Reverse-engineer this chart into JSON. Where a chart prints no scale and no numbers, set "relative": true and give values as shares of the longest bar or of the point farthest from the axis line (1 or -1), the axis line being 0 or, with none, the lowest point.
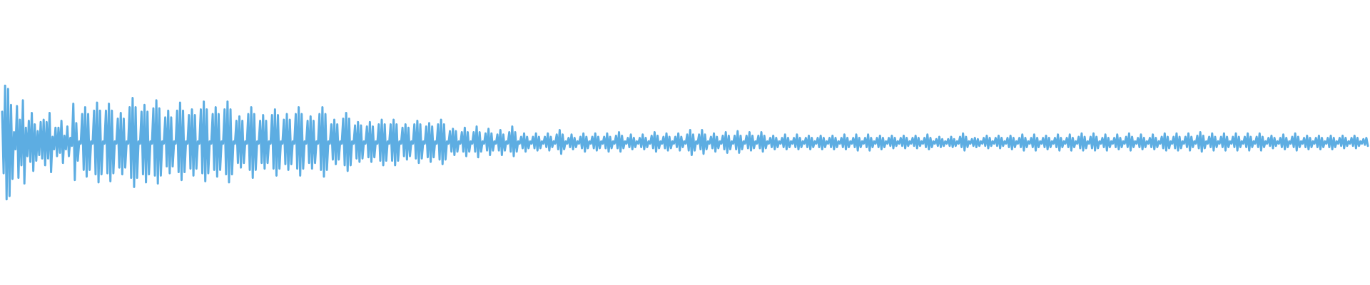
{
  "chart_data": {
    "type": "line",
    "relative": true,
    "categories": [
      null,
      null,
      null,
      null,
      null,
      null,
      null,
      null,
      null,
      null,
      null,
      null,
      null,
      null,
      null,
      null,
      null,
      null,
      null,
      null,
      null,
      null,
      null,
      null,
      null,
      null,
      null,
      null,
      null,
      null,
      null,
      null,
      null,
      null,
      null,
      null,
      null,
      null,
      null,
      null,
      null,
      null,
      null,
      null,
      null,
      null,
      null,
      null,
      null,
      null,
      null,
      null,
      null,
      null,
      null,
      null,
      null,
      null,
      null,
      null,
      null,
      null,
      null,
      null,
      null,
      null,
      null,
      null,
      null,
      null,
      null,
      null,
      null,
      null,
      null,
      null,
      null,
      null,
      null,
      null,
      null,
      null,
      null,
      null,
      null,
      null,
      null,
      null,
      null,
      null,
      null,
      null,
      null,
      null,
      null,
      null,
      null,
      null,
      null,
      null,
      null,
      null,
      null,
      null,
      null,
      null,
      null,
      null,
      null,
      null,
      null,
      null,
      null,
      null,
      null,
      null,
      null,
      null,
      null,
      null,
      null,
      null,
      null,
      null,
      null,
      null,
      null,
      null,
      null,
      null,
      null,
      null,
      null,
      null,
      null,
      null,
      null,
      null,
      null,
      null,
      null,
      null,
      null,
      null,
      null,
      null,
      null,
      null,
      null,
      null,
      null,
      null,
      null,
      null,
      null,
      null,
      null,
      null,
      null,
      null,
      null,
      null,
      null,
      null,
      null,
      null,
      null,
      null,
      null,
      null,
      null,
      null,
      null,
      null,
      null,
      null,
      null,
      null,
      null,
      null,
      null,
      null,
      null,
      null,
      null,
      null,
      null,
      null,
      null,
      null,
      null,
      null,
      null,
      null,
      null,
      null,
      null,
      null,
      null,
      null,
      null,
      null,
      null,
      null,
      null,
      null,
      null,
      null,
      null,
      null,
      null,
      null,
      null,
      null,
      null,
      null,
      null,
      null,
      null,
      null,
      null,
      null,
      null,
      null,
      null,
      null,
      null,
      null,
      null,
      null,
      null,
      null,
      null,
      null,
      null,
      null,
      null,
      null,
      null,
      null,
      null,
      null,
      null,
      null,
      null,
      null,
      null,
      null,
      null,
      null,
      null,
      null,
      null,
      null,
      null,
      null,
      null,
      null,
      null,
      null,
      null,
      null,
      null,
      null,
      null,
      null,
      null,
      null,
      null,
      null,
      null,
      null,
      null,
      null,
      null,
      null,
      null,
      null,
      null,
      null,
      null,
      null,
      null,
      null,
      null,
      null,
      null,
      null,
      null,
      null,
      null,
      null,
      null,
      null,
      null,
      null,
      null,
      null,
      null,
      null,
      null,
      null,
      null,
      null,
      null,
      null,
      null,
      null,
      null,
      null,
      null,
      null,
      null,
      null,
      null,
      null,
      null,
      null,
      null,
      null,
      null,
      null,
      null,
      null,
      null,
      null,
      null,
      null,
      null,
      null,
      null,
      null,
      null,
      null,
      null,
      null,
      null,
      null,
      null,
      null,
      null,
      null,
      null,
      null,
      null,
      null,
      null,
      null,
      null,
      null,
      null,
      null,
      null,
      null,
      null,
      null,
      null,
      null,
      null,
      null,
      null,
      null,
      null,
      null,
      null,
      null,
      null,
      null,
      null,
      null,
      null,
      null,
      null,
      null,
      null,
      null,
      null,
      null,
      null,
      null,
      null,
      null,
      null,
      null,
      null,
      null,
      null,
      null,
      null,
      null,
      null,
      null,
      null,
      null,
      null,
      null,
      null,
      null,
      null,
      null,
      null,
      null,
      null,
      null,
      null,
      null,
      null,
      null,
      null,
      null,
      null,
      null,
      null,
      null,
      null,
      null,
      null,
      null,
      null,
      null,
      null,
      null,
      null,
      null,
      null,
      null,
      null,
      null,
      null,
      null,
      null,
      null,
      null,
      null,
      null,
      null,
      null,
      null,
      null,
      null,
      null,
      null,
      null,
      null,
      null,
      null,
      null,
      null,
      null,
      null,
      null,
      null,
      null,
      null,
      null,
      null,
      null,
      null,
      null,
      null,
      null,
      null,
      null,
      null,
      null,
      null,
      null,
      null,
      null,
      null,
      null,
      null,
      null,
      null,
      null,
      null,
      null,
      null,
      null,
      null,
      null,
      null,
      null,
      null,
      null,
      null,
      null,
      null,
      null,
      null,
      null,
      null,
      null,
      null,
      null,
      null,
      null,
      null,
      null,
      null,
      null,
      null,
      null,
      null,
      null,
      null,
      null,
      null,
      null,
      null,
      null,
      null,
      null,
      null,
      null,
      null,
      null,
      null,
      null,
      null,
      null,
      null,
      null,
      null,
      null,
      null,
      null,
      null,
      null,
      null,
      null,
      null,
      null,
      null,
      null,
      null,
      null,
      null,
      null,
      null,
      null,
      null,
      null,
      null,
      null,
      null,
      null,
      null,
      null,
      null,
      null,
      null,
      null,
      null,
      null,
      null,
      null,
      null,
      null,
      null,
      null,
      null,
      null,
      null,
      null,
      null,
      null,
      null,
      null,
      null,
      null,
      null,
      null,
      null,
      null,
      null,
      null,
      null,
      null,
      null,
      null,
      null,
      null,
      null,
      null,
      null,
      null,
      null,
      null,
      null,
      null,
      null,
      null,
      null,
      null,
      null,
      null,
      null,
      null,
      null,
      null,
      null,
      null,
      null,
      null,
      null,
      null,
      null,
      null,
      null,
      null,
      null,
      null,
      null,
      null,
      null,
      null,
      null,
      null,
      null,
      null,
      null,
      null,
      null,
      null,
      null,
      null,
      null,
      null,
      null,
      null,
      null,
      null,
      null,
      null,
      null,
      null,
      null,
      null,
      null,
      null,
      null,
      null,
      null,
      null,
      null,
      null,
      null,
      null,
      null,
      null,
      null,
      null,
      null,
      null,
      null,
      null,
      null,
      null,
      null,
      null,
      null,
      null,
      null,
      null,
      null,
      null,
      null,
      null,
      null,
      null,
      null,
      null,
      null,
      null,
      null,
      null,
      null,
      null,
      null,
      null,
      null,
      null,
      null,
      null,
      null,
      null,
      null,
      null,
      null,
      null,
      null,
      null,
      null,
      null,
      null,
      null,
      null,
      null,
      null,
      null,
      null,
      null,
      null,
      null,
      null,
      null,
      null,
      null,
      null,
      null,
      null,
      null,
      null,
      null,
      null,
      null,
      null,
      null,
      null,
      null,
      null,
      null,
      null,
      null,
      null,
      null,
      null,
      null,
      null,
      null,
      null,
      null,
      null,
      null,
      null,
      null,
      null,
      null,
      null,
      null,
      null,
      null,
      null,
      null,
      null,
      null,
      null,
      null,
      null,
      null,
      null,
      null,
      null,
      null,
      null,
      null,
      null,
      null,
      null,
      null,
      null,
      null,
      null,
      null,
      null,
      null,
      null,
      null,
      null,
      null,
      null,
      null,
      null,
      null,
      null,
      null,
      null,
      null,
      null,
      null,
      null,
      null,
      null,
      null,
      null,
      null,
      null,
      null,
      null,
      null,
      null,
      null,
      null,
      null,
      null,
      null,
      null,
      null,
      null,
      null,
      null,
      null,
      null,
      null,
      null,
      null,
      null,
      null,
      null,
      null,
      null,
      null,
      null,
      null,
      null,
      null,
      null,
      null,
      null,
      null,
      null,
      null,
      null,
      null,
      null,
      null,
      null,
      null,
      null,
      null,
      null,
      null,
      null,
      null,
      null,
      null,
      null,
      null,
      null,
      null,
      null,
      null,
      null,
      null,
      null,
      null,
      null,
      null,
      null,
      null,
      null,
      null,
      null,
      null,
      null,
      null,
      null,
      null,
      null,
      null,
      null,
      null,
      null,
      null,
      null,
      null,
      null,
      null,
      null,
      null,
      null,
      null,
      null,
      null,
      null,
      null,
      null,
      null,
      null,
      null,
      null,
      null,
      null,
      null,
      null,
      null,
      null,
      null,
      null,
      null,
      null,
      null,
      null,
      null,
      null,
      null,
      null,
      null,
      null,
      null,
      null,
      null,
      null,
      null,
      null,
      null,
      null,
      null,
      null,
      null,
      null,
      null,
      null,
      null,
      null,
      null,
      null,
      null,
      null,
      null,
      null
    ],
    "series": [
      {
        "color": "#5dade2",
        "values": [
          0.77,
          0.23,
          1,
          0,
          0.97,
          0.03,
          0.83,
          0.18,
          0.59,
          0.44,
          0.82,
          0.19,
          0.7,
          0.3,
          0.87,
          0.14,
          0.63,
          0.38,
          0.69,
          0.33,
          0.76,
          0.25,
          0.66,
          0.34,
          0.6,
          0.39,
          0.68,
          0.36,
          0.7,
          0.3,
          0.68,
          0.36,
          0.76,
          0.24,
          0.55,
          0.44,
          0.63,
          0.38,
          0.63,
          0.41,
          0.69,
          0.32,
          0.56,
          0.44,
          0.64,
          0.38,
          0.54,
          0.47,
          0.84,
          0.17,
          0.67,
          0.34,
          0.51,
          0.49,
          0.75,
          0.26,
          0.81,
          0.2,
          0.75,
          0.26,
          0.51,
          0.49,
          0.78,
          0.22,
          0.85,
          0.15,
          0.78,
          0.22,
          0.51,
          0.49,
          0.78,
          0.23,
          0.84,
          0.16,
          0.78,
          0.23,
          0.51,
          0.49,
          0.71,
          0.28,
          0.76,
          0.22,
          0.71,
          0.28,
          0.51,
          0.49,
          0.81,
          0.19,
          0.89,
          0.11,
          0.81,
          0.19,
          0.51,
          0.49,
          0.77,
          0.22,
          0.83,
          0.15,
          0.77,
          0.22,
          0.51,
          0.49,
          0.8,
          0.21,
          0.87,
          0.14,
          0.8,
          0.21,
          0.51,
          0.49,
          0.72,
          0.29,
          0.78,
          0.23,
          0.72,
          0.29,
          0.51,
          0.49,
          0.78,
          0.24,
          0.85,
          0.17,
          0.78,
          0.24,
          0.51,
          0.49,
          0.74,
          0.27,
          0.79,
          0.21,
          0.74,
          0.27,
          0.51,
          0.49,
          0.79,
          0.23,
          0.86,
          0.16,
          0.79,
          0.23,
          0.51,
          0.49,
          0.75,
          0.26,
          0.81,
          0.2,
          0.75,
          0.26,
          0.51,
          0.49,
          0.79,
          0.22,
          0.86,
          0.15,
          0.79,
          0.22,
          0.51,
          0.49,
          0.69,
          0.32,
          0.73,
          0.28,
          0.69,
          0.32,
          0.51,
          0.49,
          0.75,
          0.26,
          0.81,
          0.19,
          0.75,
          0.26,
          0.51,
          0.49,
          0.69,
          0.32,
          0.74,
          0.27,
          0.69,
          0.32,
          0.51,
          0.49,
          0.74,
          0.27,
          0.79,
          0.21,
          0.74,
          0.27,
          0.51,
          0.49,
          0.7,
          0.31,
          0.75,
          0.26,
          0.7,
          0.31,
          0.51,
          0.49,
          0.75,
          0.27,
          0.81,
          0.21,
          0.75,
          0.27,
          0.51,
          0.49,
          0.69,
          0.32,
          0.73,
          0.27,
          0.69,
          0.32,
          0.51,
          0.49,
          0.75,
          0.26,
          0.81,
          0.2,
          0.75,
          0.26,
          0.51,
          0.49,
          0.66,
          0.35,
          0.7,
          0.31,
          0.66,
          0.35,
          0.51,
          0.49,
          0.71,
          0.3,
          0.76,
          0.25,
          0.71,
          0.3,
          0.51,
          0.49,
          0.65,
          0.36,
          0.68,
          0.33,
          0.65,
          0.36,
          0.51,
          0.49,
          0.64,
          0.37,
          0.68,
          0.33,
          0.64,
          0.37,
          0.51,
          0.49,
          0.66,
          0.34,
          0.7,
          0.3,
          0.66,
          0.34,
          0.51,
          0.49,
          0.66,
          0.34,
          0.7,
          0.3,
          0.66,
          0.34,
          0.51,
          0.49,
          0.63,
          0.38,
          0.66,
          0.35,
          0.63,
          0.38,
          0.51,
          0.49,
          0.66,
          0.36,
          0.69,
          0.32,
          0.66,
          0.36,
          0.51,
          0.49,
          0.64,
          0.37,
          0.67,
          0.33,
          0.64,
          0.37,
          0.51,
          0.49,
          0.66,
          0.35,
          0.7,
          0.31,
          0.66,
          0.35,
          0.51,
          0.49,
          0.6,
          0.42,
          0.62,
          0.39,
          0.6,
          0.42,
          0.51,
          0.49,
          0.59,
          0.42,
          0.63,
          0.38,
          0.59,
          0.42,
          0.51,
          0.49,
          0.59,
          0.42,
          0.64,
          0.37,
          0.59,
          0.42,
          0.51,
          0.49,
          0.58,
          0.43,
          0.62,
          0.39,
          0.58,
          0.43,
          0.51,
          0.49,
          0.57,
          0.43,
          0.61,
          0.39,
          0.57,
          0.43,
          0.51,
          0.49,
          0.59,
          0.42,
          0.64,
          0.38,
          0.59,
          0.42,
          0.51,
          0.49,
          0.55,
          0.45,
          0.58,
          0.42,
          0.55,
          0.45,
          0.51,
          0.49,
          0.55,
          0.45,
          0.58,
          0.43,
          0.55,
          0.45,
          0.51,
          0.49,
          0.55,
          0.46,
          0.58,
          0.43,
          0.55,
          0.46,
          0.51,
          0.49,
          0.57,
          0.44,
          0.61,
          0.4,
          0.57,
          0.44,
          0.51,
          0.49,
          0.54,
          0.46,
          0.57,
          0.44,
          0.54,
          0.46,
          0.51,
          0.49,
          0.55,
          0.45,
          0.58,
          0.42,
          0.55,
          0.45,
          0.51,
          0.49,
          0.55,
          0.45,
          0.58,
          0.43,
          0.55,
          0.45,
          0.51,
          0.49,
          0.55,
          0.45,
          0.58,
          0.42,
          0.55,
          0.45,
          0.51,
          0.49,
          0.56,
          0.45,
          0.59,
          0.42,
          0.56,
          0.45,
          0.51,
          0.49,
          0.54,
          0.46,
          0.57,
          0.44,
          0.54,
          0.46,
          0.51,
          0.49,
          0.54,
          0.46,
          0.57,
          0.44,
          0.54,
          0.46,
          0.51,
          0.49,
          0.56,
          0.45,
          0.59,
          0.42,
          0.56,
          0.45,
          0.51,
          0.49,
          0.55,
          0.45,
          0.58,
          0.43,
          0.55,
          0.45,
          0.51,
          0.49,
          0.55,
          0.46,
          0.58,
          0.43,
          0.55,
          0.46,
          0.51,
          0.49,
          0.57,
          0.43,
          0.61,
          0.39,
          0.57,
          0.43,
          0.51,
          0.49,
          0.57,
          0.44,
          0.61,
          0.4,
          0.57,
          0.44,
          0.51,
          0.49,
          0.55,
          0.45,
          0.58,
          0.42,
          0.55,
          0.45,
          0.51,
          0.49,
          0.56,
          0.44,
          0.59,
          0.41,
          0.56,
          0.44,
          0.51,
          0.49,
          0.56,
          0.44,
          0.6,
          0.41,
          0.56,
          0.44,
          0.51,
          0.49,
          0.56,
          0.45,
          0.59,
          0.43,
          0.56,
          0.45,
          0.51,
          0.49,
          0.56,
          0.45,
          0.59,
          0.42,
          0.56,
          0.45,
          0.51,
          0.49,
          0.54,
          0.46,
          0.56,
          0.44,
          0.54,
          0.46,
          0.51,
          0.49,
          0.54,
          0.46,
          0.57,
          0.44,
          0.54,
          0.46,
          0.51,
          0.49,
          0.54,
          0.46,
          0.57,
          0.44,
          0.54,
          0.46,
          0.51,
          0.49,
          0.54,
          0.46,
          0.56,
          0.44,
          0.54,
          0.46,
          0.51,
          0.49,
          0.54,
          0.46,
          0.56,
          0.44,
          0.54,
          0.46,
          0.51,
          0.49,
          0.54,
          0.46,
          0.56,
          0.44,
          0.54,
          0.46,
          0.51,
          0.49,
          0.54,
          0.46,
          0.57,
          0.44,
          0.54,
          0.46,
          0.51,
          0.49,
          0.54,
          0.46,
          0.57,
          0.43,
          0.54,
          0.46,
          0.51,
          0.49,
          0.54,
          0.46,
          0.57,
          0.43,
          0.54,
          0.46,
          0.51,
          0.49,
          0.54,
          0.46,
          0.56,
          0.44,
          0.54,
          0.46,
          0.51,
          0.49,
          0.54,
          0.47,
          0.56,
          0.45,
          0.54,
          0.47,
          0.51,
          0.49,
          0.54,
          0.47,
          0.56,
          0.45,
          0.54,
          0.47,
          0.51,
          0.49,
          0.54,
          0.47,
          0.56,
          0.45,
          0.54,
          0.47,
          0.51,
          0.49,
          0.54,
          0.46,
          0.57,
          0.44,
          0.54,
          0.46,
          0.51,
          0.49,
          0.53,
          0.47,
          0.55,
          0.46,
          0.53,
          0.47,
          0.51,
          0.49,
          0.53,
          0.47,
          0.55,
          0.46,
          0.53,
          0.47,
          0.51,
          0.49,
          0.55,
          0.46,
          0.58,
          0.43,
          0.55,
          0.46,
          0.51,
          0.49,
          0.53,
          0.47,
          0.54,
          0.46,
          0.53,
          0.47,
          0.51,
          0.49,
          0.54,
          0.47,
          0.56,
          0.45,
          0.54,
          0.47,
          0.51,
          0.49,
          0.54,
          0.47,
          0.56,
          0.45,
          0.54,
          0.47,
          0.51,
          0.49,
          0.54,
          0.46,
          0.56,
          0.44,
          0.54,
          0.46,
          0.51,
          0.49,
          0.54,
          0.46,
          0.57,
          0.43,
          0.54,
          0.46,
          0.51,
          0.49,
          0.54,
          0.46,
          0.57,
          0.43,
          0.54,
          0.46,
          0.51,
          0.49,
          0.54,
          0.46,
          0.56,
          0.44,
          0.54,
          0.46,
          0.51,
          0.49,
          0.54,
          0.46,
          0.57,
          0.43,
          0.54,
          0.46,
          0.51,
          0.49,
          0.54,
          0.46,
          0.57,
          0.43,
          0.54,
          0.46,
          0.51,
          0.49,
          0.55,
          0.45,
          0.58,
          0.43,
          0.55,
          0.45,
          0.51,
          0.49,
          0.55,
          0.45,
          0.58,
          0.43,
          0.55,
          0.45,
          0.51,
          0.49,
          0.54,
          0.46,
          0.57,
          0.43,
          0.54,
          0.46,
          0.51,
          0.49,
          0.54,
          0.46,
          0.57,
          0.44,
          0.54,
          0.46,
          0.51,
          0.49,
          0.55,
          0.46,
          0.58,
          0.43,
          0.55,
          0.46,
          0.51,
          0.49,
          0.54,
          0.46,
          0.57,
          0.44,
          0.54,
          0.46,
          0.51,
          0.49,
          0.54,
          0.46,
          0.57,
          0.44,
          0.54,
          0.46,
          0.51,
          0.49,
          0.55,
          0.45,
          0.58,
          0.43,
          0.55,
          0.45,
          0.51,
          0.49,
          0.55,
          0.45,
          0.58,
          0.43,
          0.55,
          0.45,
          0.51,
          0.49,
          0.55,
          0.46,
          0.58,
          0.43,
          0.55,
          0.46,
          0.51,
          0.49,
          0.56,
          0.45,
          0.59,
          0.42,
          0.56,
          0.45,
          0.51,
          0.49,
          0.55,
          0.46,
          0.58,
          0.43,
          0.55,
          0.46,
          0.51,
          0.49,
          0.55,
          0.46,
          0.58,
          0.43,
          0.55,
          0.46,
          0.51,
          0.49,
          0.55,
          0.46,
          0.58,
          0.43,
          0.55,
          0.46,
          0.51,
          0.49,
          0.55,
          0.46,
          0.58,
          0.43,
          0.55,
          0.46,
          0.51,
          0.49,
          0.55,
          0.46,
          0.58,
          0.43,
          0.55,
          0.46,
          0.51,
          0.49,
          0.54,
          0.47,
          0.56,
          0.45,
          0.54,
          0.47,
          0.51,
          0.49,
          0.54,
          0.46,
          0.57,
          0.44,
          0.54,
          0.46,
          0.51,
          0.49,
          0.55,
          0.46,
          0.58,
          0.43,
          0.55,
          0.46,
          0.51,
          0.49,
          0.54,
          0.46,
          0.56,
          0.44,
          0.54,
          0.46,
          0.51,
          0.49,
          0.54,
          0.46,
          0.56,
          0.44,
          0.54,
          0.46,
          0.51,
          0.49,
          0.54,
          0.46,
          0.56,
          0.44,
          0.54,
          0.46,
          0.51,
          0.49,
          0.54,
          0.47,
          0.56,
          0.45,
          0.54,
          0.47,
          0.51,
          0.49,
          0.54,
          0.47,
          0.56,
          0.45,
          0.54,
          0.47,
          0.51,
          0.49,
          0.53,
          0.48,
          0.54,
          0.47
        ]
      }
    ]
  }
}
